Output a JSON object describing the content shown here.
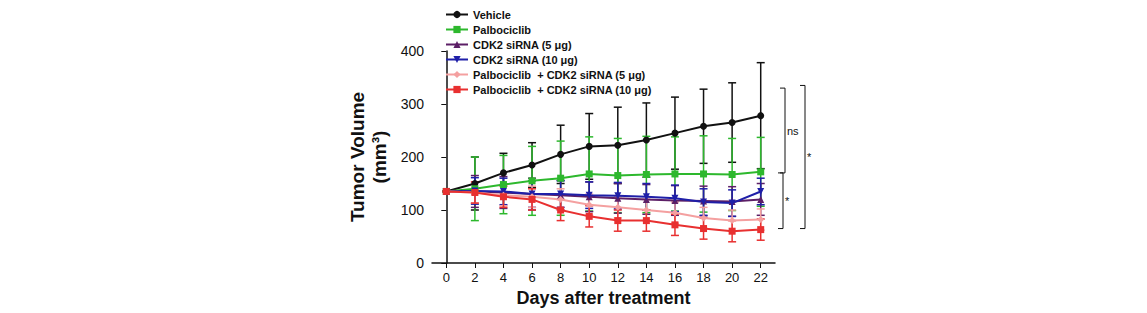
{
  "chart_data": {
    "type": "line",
    "x_label": "Days after treatment",
    "y_label": "Tumor Volume\n(mm³)",
    "x": [
      0,
      2,
      4,
      6,
      8,
      10,
      12,
      14,
      16,
      18,
      20,
      22
    ],
    "xlim": [
      -1,
      23
    ],
    "xticks": [
      0,
      2,
      4,
      6,
      8,
      10,
      12,
      14,
      16,
      18,
      20,
      22
    ],
    "ylim": [
      0,
      400
    ],
    "yticks": [
      0,
      100,
      200,
      300,
      400
    ],
    "grid": false,
    "legend": "top-left",
    "series": [
      {
        "name": "Vehicle",
        "color": "#111111",
        "marker": "circle",
        "values": [
          135,
          150,
          170,
          185,
          205,
          220,
          222,
          232,
          245,
          258,
          265,
          278
        ],
        "errors": [
          0,
          50,
          37,
          42,
          55,
          62,
          72,
          70,
          68,
          70,
          75,
          100
        ]
      },
      {
        "name": "Palbociclib",
        "color": "#2db82d",
        "marker": "square",
        "values": [
          135,
          140,
          148,
          155,
          160,
          168,
          165,
          167,
          168,
          168,
          167,
          172
        ],
        "errors": [
          0,
          60,
          55,
          65,
          70,
          70,
          70,
          72,
          70,
          72,
          68,
          65
        ]
      },
      {
        "name": "CDK2 siRNA (5 μg)",
        "color": "#5c1f66",
        "marker": "triangle",
        "values": [
          135,
          135,
          133,
          130,
          128,
          125,
          122,
          120,
          118,
          117,
          116,
          120
        ],
        "errors": [
          0,
          30,
          30,
          30,
          28,
          28,
          28,
          28,
          28,
          28,
          28,
          30
        ]
      },
      {
        "name": "CDK2 siRNA (10 μg)",
        "color": "#1f1fa8",
        "marker": "triangle-down",
        "values": [
          135,
          136,
          135,
          130,
          130,
          128,
          127,
          125,
          122,
          115,
          113,
          135
        ],
        "errors": [
          0,
          25,
          25,
          25,
          25,
          25,
          25,
          25,
          25,
          25,
          25,
          25
        ]
      },
      {
        "name": "Palbociclib  + CDK2 siRNA (5 μg)",
        "color": "#f4a0a0",
        "marker": "diamond",
        "values": [
          135,
          133,
          128,
          125,
          120,
          110,
          105,
          100,
          95,
          85,
          80,
          82
        ],
        "errors": [
          0,
          20,
          20,
          20,
          20,
          20,
          20,
          20,
          20,
          20,
          20,
          20
        ]
      },
      {
        "name": "Palbociclib  + CDK2 siRNA (10 μg)",
        "color": "#e83030",
        "marker": "square",
        "values": [
          135,
          133,
          125,
          120,
          100,
          88,
          80,
          80,
          72,
          65,
          60,
          63
        ],
        "errors": [
          0,
          20,
          20,
          20,
          20,
          20,
          20,
          20,
          20,
          20,
          20,
          20
        ]
      }
    ],
    "brackets": [
      {
        "label": "ns",
        "y1": 330,
        "y2": 170
      },
      {
        "label": "*",
        "y1": 335,
        "y2": 65
      },
      {
        "label": "*",
        "y1": 170,
        "y2": 65
      }
    ]
  }
}
